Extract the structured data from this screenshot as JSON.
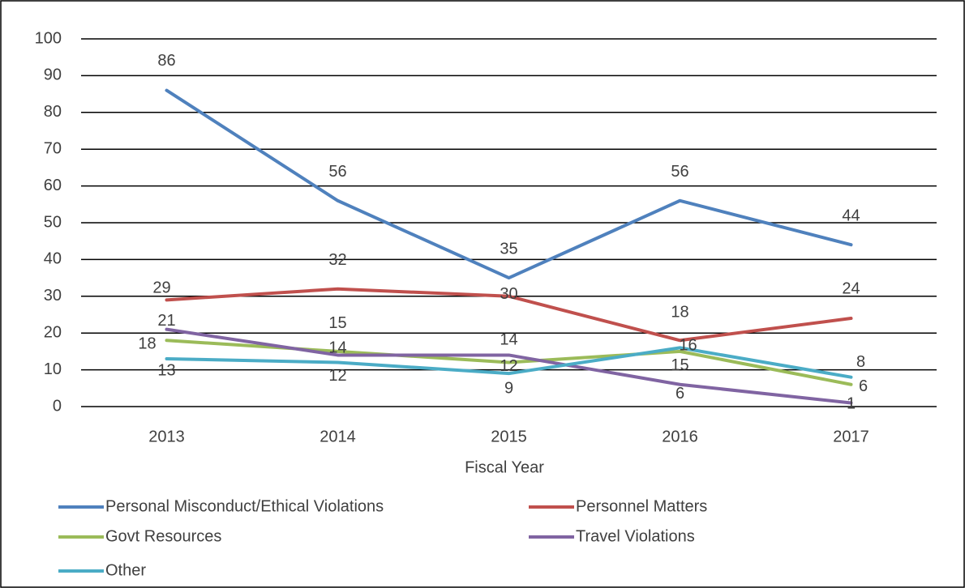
{
  "chart_data": {
    "type": "line",
    "x_label": "Fiscal Year",
    "categories": [
      "2013",
      "2014",
      "2015",
      "2016",
      "2017"
    ],
    "series": [
      {
        "name": "Personal Misconduct/Ethical Violations",
        "color": "#4f81bd",
        "values": [
          86,
          56,
          35,
          56,
          44
        ]
      },
      {
        "name": "Personnel Matters",
        "color": "#c0504d",
        "values": [
          29,
          32,
          30,
          18,
          24
        ]
      },
      {
        "name": "Govt Resources",
        "color": "#9bbb59",
        "values": [
          18,
          15,
          12,
          15,
          6
        ]
      },
      {
        "name": "Travel Violations",
        "color": "#8064a2",
        "values": [
          21,
          14,
          14,
          6,
          1
        ]
      },
      {
        "name": "Other",
        "color": "#4bacc6",
        "values": [
          13,
          12,
          9,
          16,
          8
        ]
      }
    ],
    "ylim": [
      0,
      100
    ],
    "yticks": [
      0,
      10,
      20,
      30,
      40,
      50,
      60,
      70,
      80,
      90,
      100
    ],
    "grid": true,
    "legend": "bottom"
  }
}
